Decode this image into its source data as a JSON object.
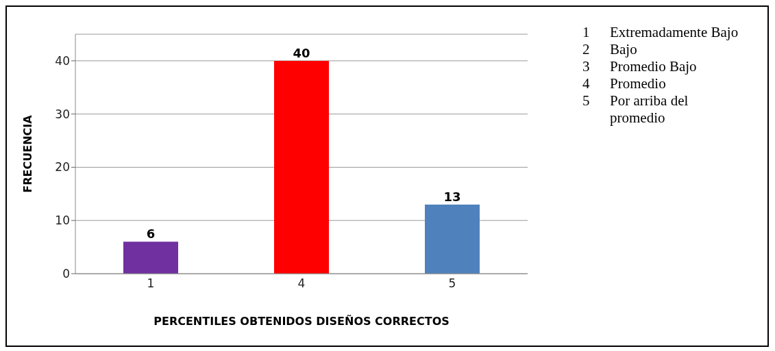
{
  "chart_data": {
    "type": "bar",
    "xlabel": "PERCENTILES OBTENIDOS DISEÑOS CORRECTOS",
    "ylabel": "FRECUENCIA",
    "categories": [
      "1",
      "4",
      "5"
    ],
    "values": [
      6,
      40,
      13
    ],
    "colors": [
      "#7030a0",
      "#ff0000",
      "#4f81bd"
    ],
    "ylim": [
      0,
      45
    ],
    "yticks": [
      0,
      10,
      20,
      30,
      40
    ],
    "grid": "y",
    "data_labels": true,
    "annotations": [
      "1\tExtremadamente Bajo",
      "2\tBajo",
      "3\tPromedio Bajo",
      "4\tPromedio",
      "5\tPor arriba del promedio"
    ]
  }
}
